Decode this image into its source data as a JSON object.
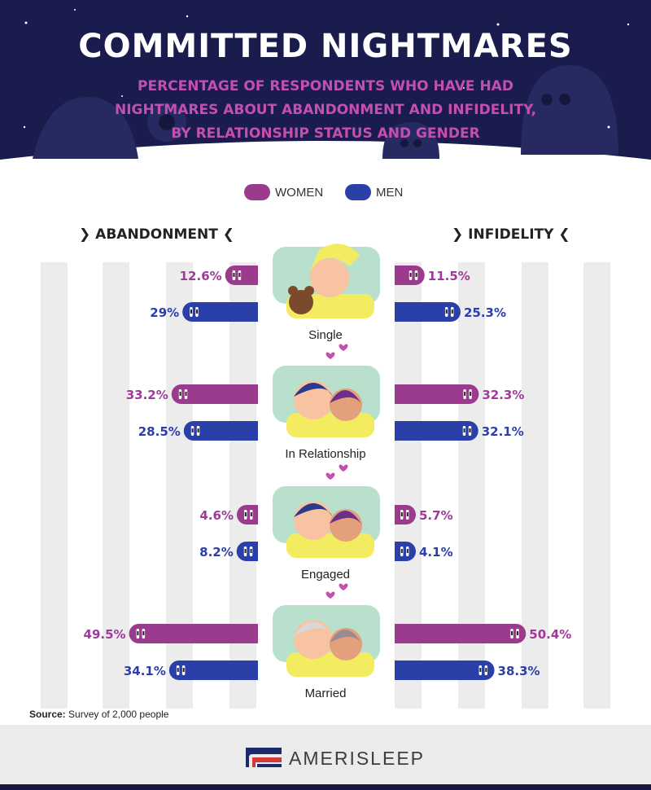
{
  "title": "COMMITTED NIGHTMARES",
  "subtitle_lines": [
    "PERCENTAGE OF RESPONDENTS WHO HAVE HAD",
    "NIGHTMARES ABOUT ABANDONMENT AND INFIDELITY,",
    "BY RELATIONSHIP STATUS AND GENDER"
  ],
  "legend": {
    "women": "WOMEN",
    "men": "MEN"
  },
  "colors": {
    "women": "#9b3b8e",
    "men": "#2b3fa8",
    "women_label": "#a1399a",
    "men_label": "#2d3fa6",
    "header_bg": "#1a1c4e",
    "stripe": "#ececec",
    "pillow": "#b8e0cc"
  },
  "section_headers": {
    "left": "ABANDONMENT",
    "right": "INFIDELITY"
  },
  "chart_data": {
    "type": "bar",
    "orientation": "horizontal",
    "layout": "diverging",
    "categories": [
      "Single",
      "In Relationship",
      "Engaged",
      "Married"
    ],
    "unit": "%",
    "panels": [
      {
        "name": "ABANDONMENT",
        "series": [
          {
            "name": "WOMEN",
            "values": [
              12.6,
              33.2,
              4.6,
              49.5
            ],
            "labels": [
              "12.6%",
              "33.2%",
              "4.6%",
              "49.5%"
            ]
          },
          {
            "name": "MEN",
            "values": [
              29,
              28.5,
              8.2,
              34.1
            ],
            "labels": [
              "29%",
              "28.5%",
              "8.2%",
              "34.1%"
            ]
          }
        ]
      },
      {
        "name": "INFIDELITY",
        "series": [
          {
            "name": "WOMEN",
            "values": [
              11.5,
              32.3,
              5.7,
              50.4
            ],
            "labels": [
              "11.5%",
              "32.3%",
              "5.7%",
              "50.4%"
            ]
          },
          {
            "name": "MEN",
            "values": [
              25.3,
              32.1,
              4.1,
              38.3
            ],
            "labels": [
              "25.3%",
              "32.1%",
              "4.1%",
              "38.3%"
            ]
          }
        ]
      }
    ],
    "xlim": [
      0,
      50
    ]
  },
  "source": {
    "label": "Source:",
    "text": "Survey of 2,000 people"
  },
  "brand": "AMERISLEEP"
}
